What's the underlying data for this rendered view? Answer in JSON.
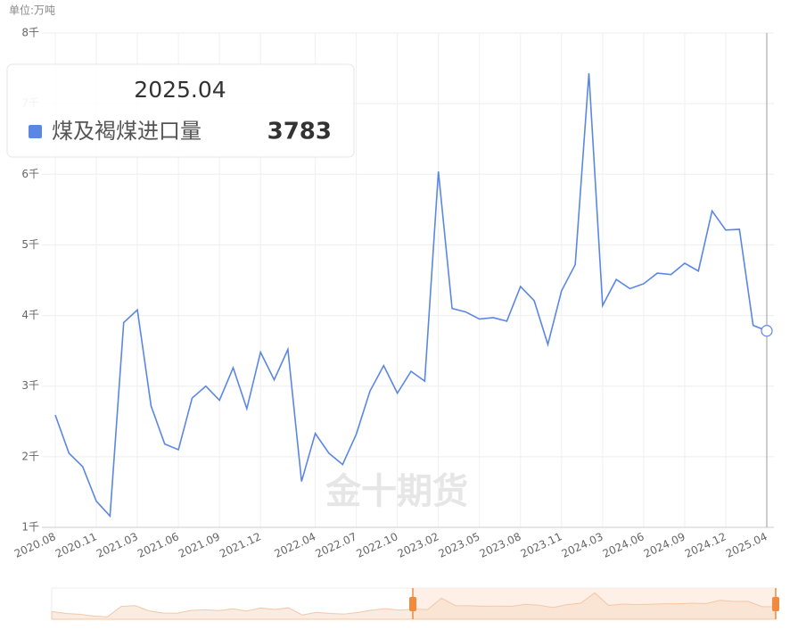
{
  "chart_data": {
    "type": "line",
    "unit": "单位:万吨",
    "watermark": "金十期货",
    "categories": [
      "2020.08",
      null,
      null,
      "2020.11",
      null,
      null,
      "2021.03",
      null,
      null,
      "2021.06",
      null,
      null,
      "2021.09",
      null,
      null,
      "2021.12",
      null,
      null,
      null,
      "2022.04",
      null,
      null,
      "2022.07",
      null,
      null,
      "2022.10",
      null,
      null,
      "2023.02",
      null,
      null,
      "2023.05",
      null,
      null,
      "2023.08",
      null,
      null,
      "2023.11",
      null,
      null,
      "2024.03",
      null,
      null,
      "2024.06",
      null,
      null,
      "2024.09",
      null,
      null,
      "2024.12",
      null,
      null,
      "2025.04"
    ],
    "series": [
      {
        "name": "煤及褐煤进口量",
        "color": "#5b87e4",
        "values": [
          2590,
          2050,
          1860,
          1370,
          1160,
          3900,
          4080,
          2720,
          2180,
          2100,
          2830,
          3000,
          2800,
          3260,
          2680,
          3480,
          3090,
          3520,
          1650,
          2330,
          2050,
          1890,
          2320,
          2930,
          3290,
          2900,
          3210,
          3070,
          6040,
          4100,
          4050,
          3950,
          3970,
          3920,
          4410,
          4210,
          3590,
          4350,
          4720,
          7430,
          4140,
          4510,
          4380,
          4450,
          4600,
          4580,
          4740,
          4630,
          5480,
          5210,
          5220,
          3860,
          3783
        ]
      }
    ],
    "ylim": [
      1000,
      8000
    ],
    "yticks": [
      {
        "value": 1000,
        "label": "1千"
      },
      {
        "value": 2000,
        "label": "2千"
      },
      {
        "value": 3000,
        "label": "3千"
      },
      {
        "value": 4000,
        "label": "4千"
      },
      {
        "value": 5000,
        "label": "5千"
      },
      {
        "value": 6000,
        "label": "6千"
      },
      {
        "value": 7000,
        "label": "7千"
      },
      {
        "value": 8000,
        "label": "8千"
      }
    ],
    "grid": true,
    "tooltip": {
      "category": "2025.04",
      "series": "煤及褐煤进口量",
      "value": 3783
    }
  }
}
